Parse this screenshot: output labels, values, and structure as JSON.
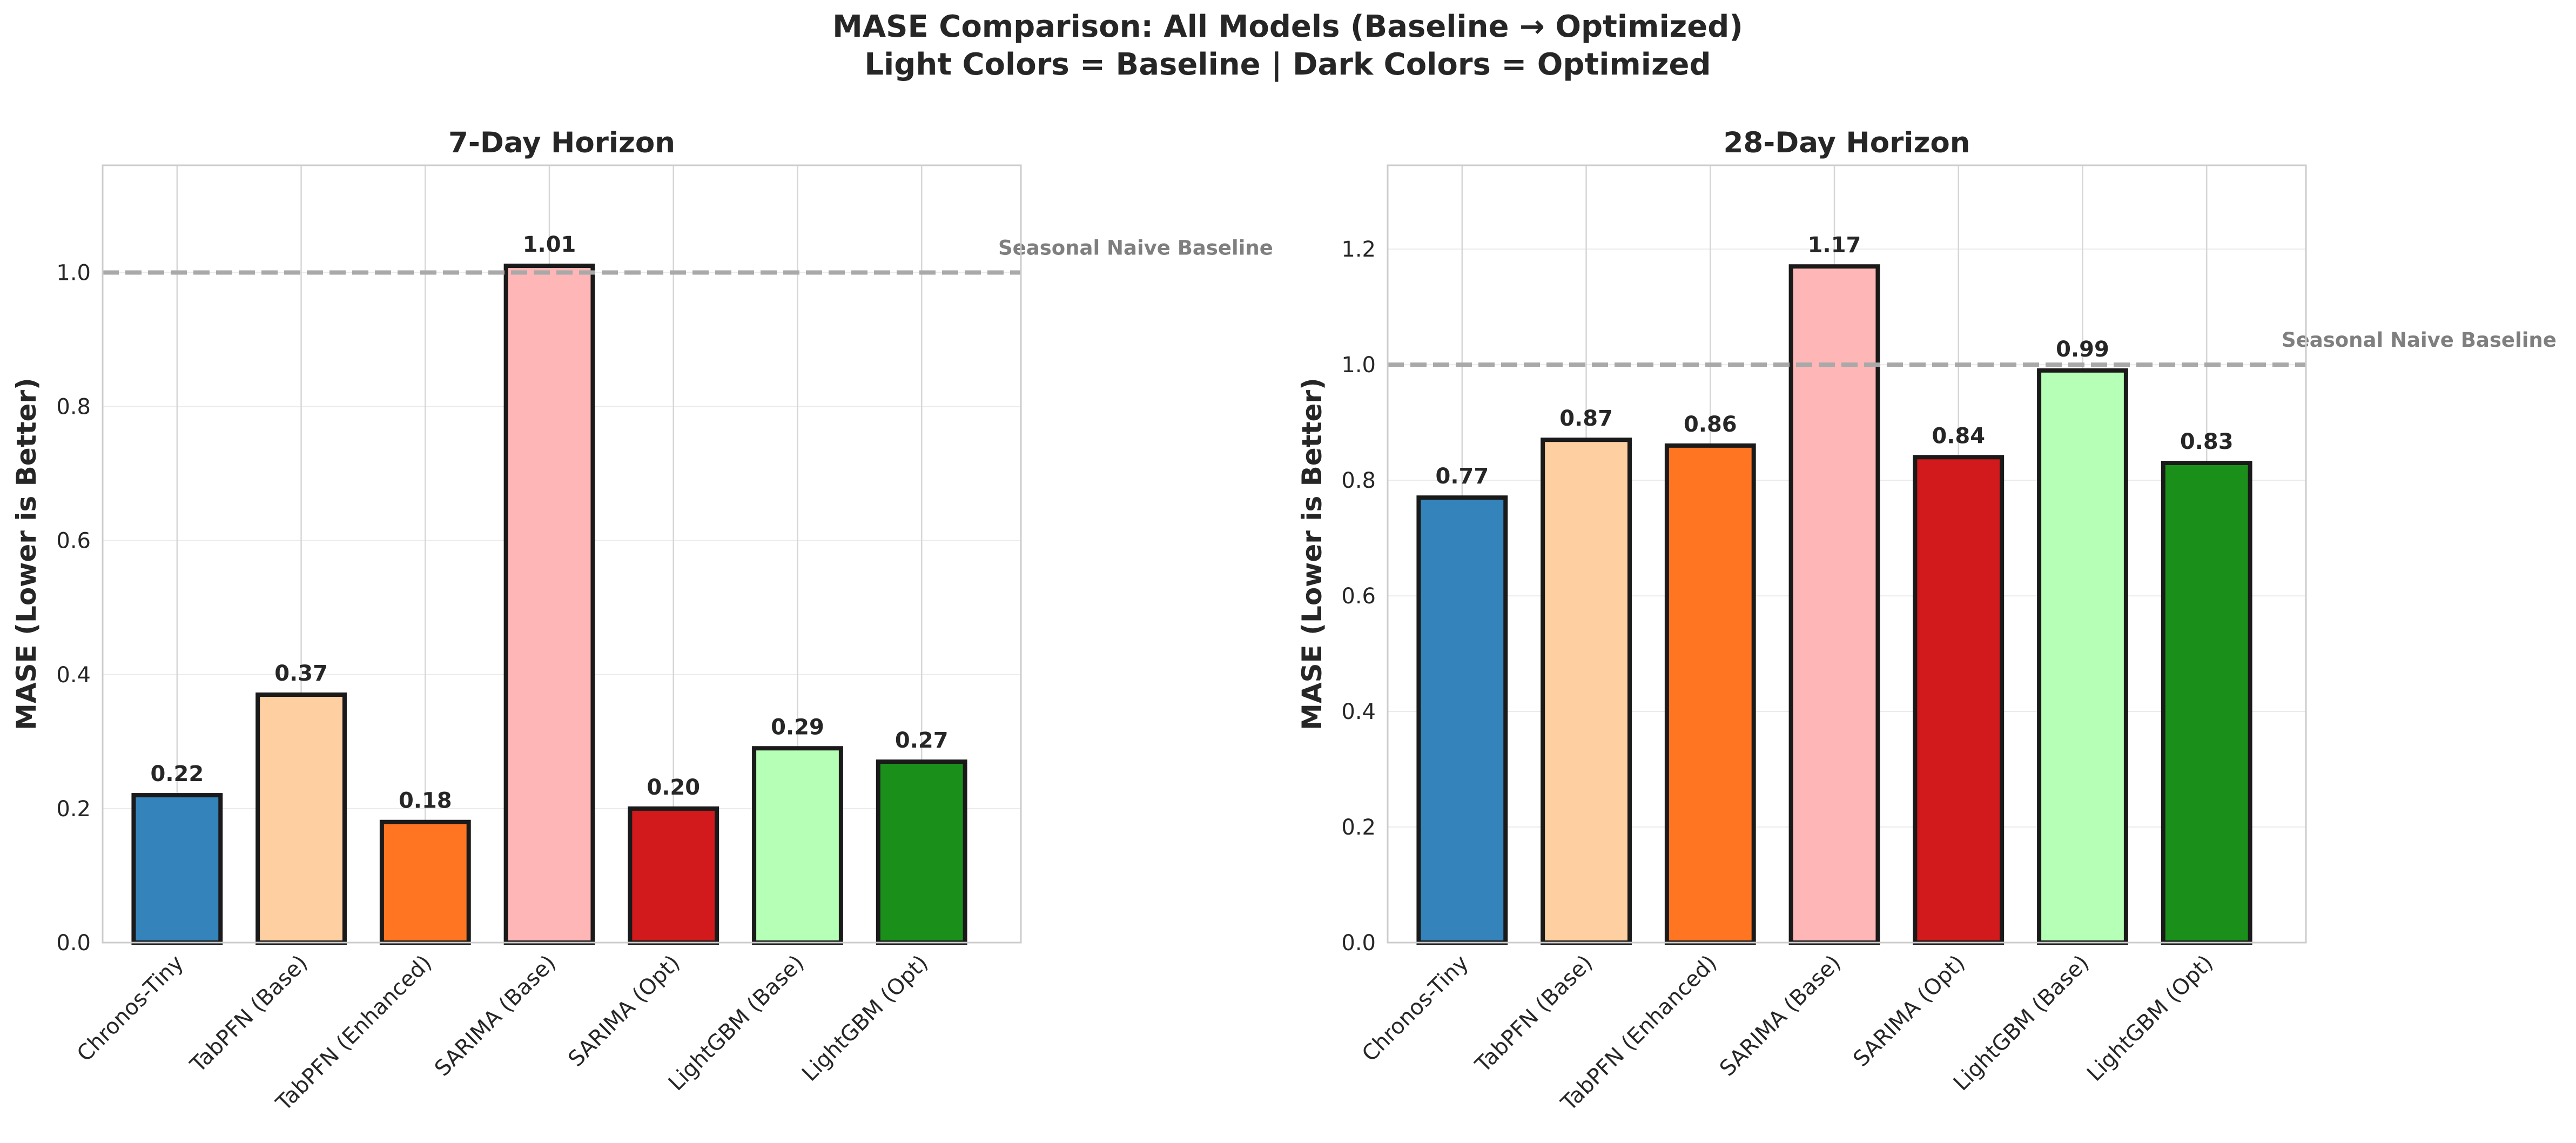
{
  "figure": {
    "title_line1": "MASE Comparison: All Models (Baseline → Optimized)",
    "title_line2": "Light Colors = Baseline | Dark Colors = Optimized"
  },
  "chart_data": [
    {
      "type": "bar",
      "title": "7-Day Horizon",
      "xlabel": "",
      "ylabel": "MASE (Lower is Better)",
      "ylim": [
        0,
        1.16
      ],
      "yticks": [
        0.0,
        0.2,
        0.4,
        0.6,
        0.8,
        1.0
      ],
      "grid": true,
      "categories": [
        "Chronos-Tiny",
        "TabPFN (Base)",
        "TabPFN (Enhanced)",
        "SARIMA (Base)",
        "SARIMA (Opt)",
        "LightGBM (Base)",
        "LightGBM (Opt)"
      ],
      "values": [
        0.22,
        0.37,
        0.18,
        1.01,
        0.2,
        0.29,
        0.27
      ],
      "value_labels": [
        "0.22",
        "0.37",
        "0.18",
        "1.01",
        "0.20",
        "0.29",
        "0.27"
      ],
      "colors": [
        "#3483bb",
        "#fecfa0",
        "#ff7521",
        "#ffb6b6",
        "#d2191b",
        "#b6ffb6",
        "#1a901a"
      ],
      "reference_line": {
        "value": 1.0,
        "label": "Seasonal Naive Baseline",
        "color": "#a9a9a9",
        "style": "dashed"
      }
    },
    {
      "type": "bar",
      "title": "28-Day Horizon",
      "xlabel": "",
      "ylabel": "MASE (Lower is Better)",
      "ylim": [
        0,
        1.345
      ],
      "yticks": [
        0.0,
        0.2,
        0.4,
        0.6,
        0.8,
        1.0,
        1.2
      ],
      "grid": true,
      "categories": [
        "Chronos-Tiny",
        "TabPFN (Base)",
        "TabPFN (Enhanced)",
        "SARIMA (Base)",
        "SARIMA (Opt)",
        "LightGBM (Base)",
        "LightGBM (Opt)"
      ],
      "values": [
        0.77,
        0.87,
        0.86,
        1.17,
        0.84,
        0.99,
        0.83
      ],
      "value_labels": [
        "0.77",
        "0.87",
        "0.86",
        "1.17",
        "0.84",
        "0.99",
        "0.83"
      ],
      "colors": [
        "#3483bb",
        "#fecfa0",
        "#ff7521",
        "#ffb6b6",
        "#d2191b",
        "#b6ffb6",
        "#1a901a"
      ],
      "reference_line": {
        "value": 1.0,
        "label": "Seasonal Naive Baseline",
        "color": "#a9a9a9",
        "style": "dashed"
      }
    }
  ]
}
